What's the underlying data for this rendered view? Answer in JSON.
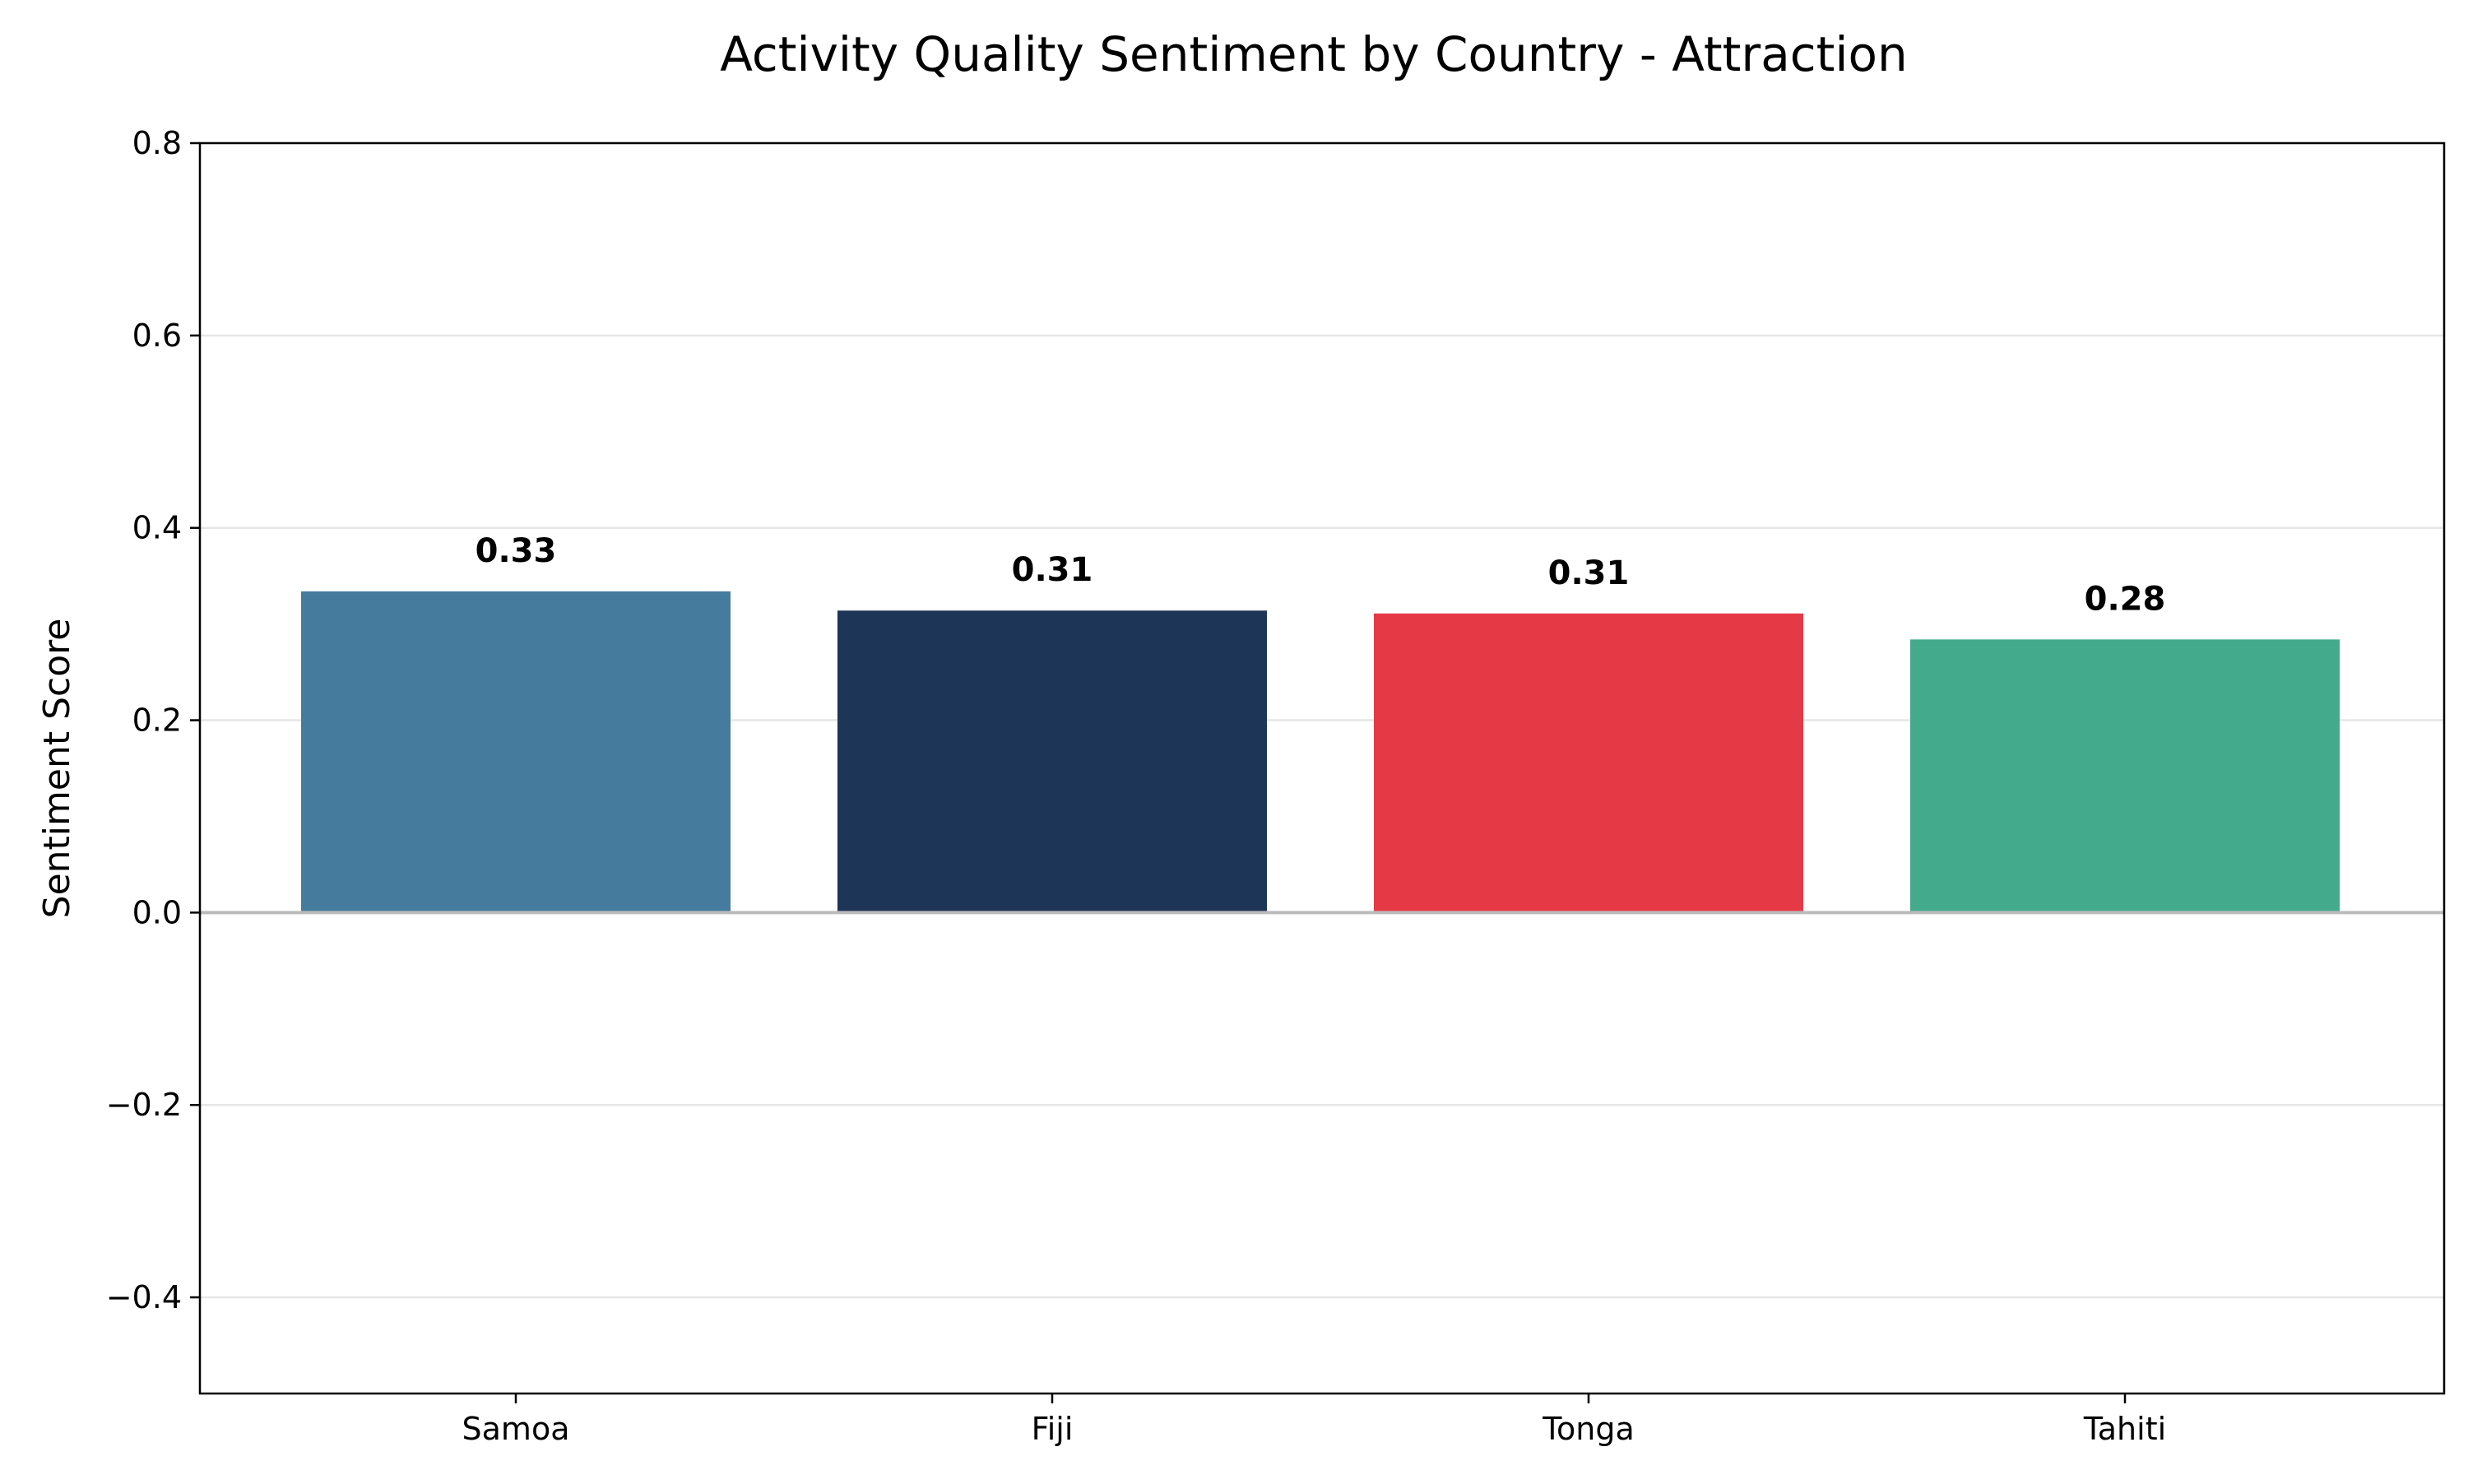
{
  "chart_data": {
    "type": "bar",
    "title": "Activity Quality Sentiment by Country - Attraction",
    "xlabel": "",
    "ylabel": "Sentiment Score",
    "categories": [
      "Samoa",
      "Fiji",
      "Tonga",
      "Tahiti"
    ],
    "values": [
      0.334,
      0.314,
      0.311,
      0.284
    ],
    "data_labels": [
      "0.33",
      "0.31",
      "0.31",
      "0.28"
    ],
    "colors": [
      "#457b9d",
      "#1d3557",
      "#e63946",
      "#43aa8b"
    ],
    "ylim": [
      -0.5,
      0.8
    ],
    "yticks": [
      -0.4,
      -0.2,
      0.0,
      0.2,
      0.4,
      0.6,
      0.8
    ],
    "ytick_labels": [
      "−0.4",
      "−0.2",
      "0.0",
      "0.2",
      "0.4",
      "0.6",
      "0.8"
    ],
    "grid": "y",
    "legend": "none",
    "zero_line_color": "#bbbbbb",
    "grid_color": "#e6e6e6"
  }
}
